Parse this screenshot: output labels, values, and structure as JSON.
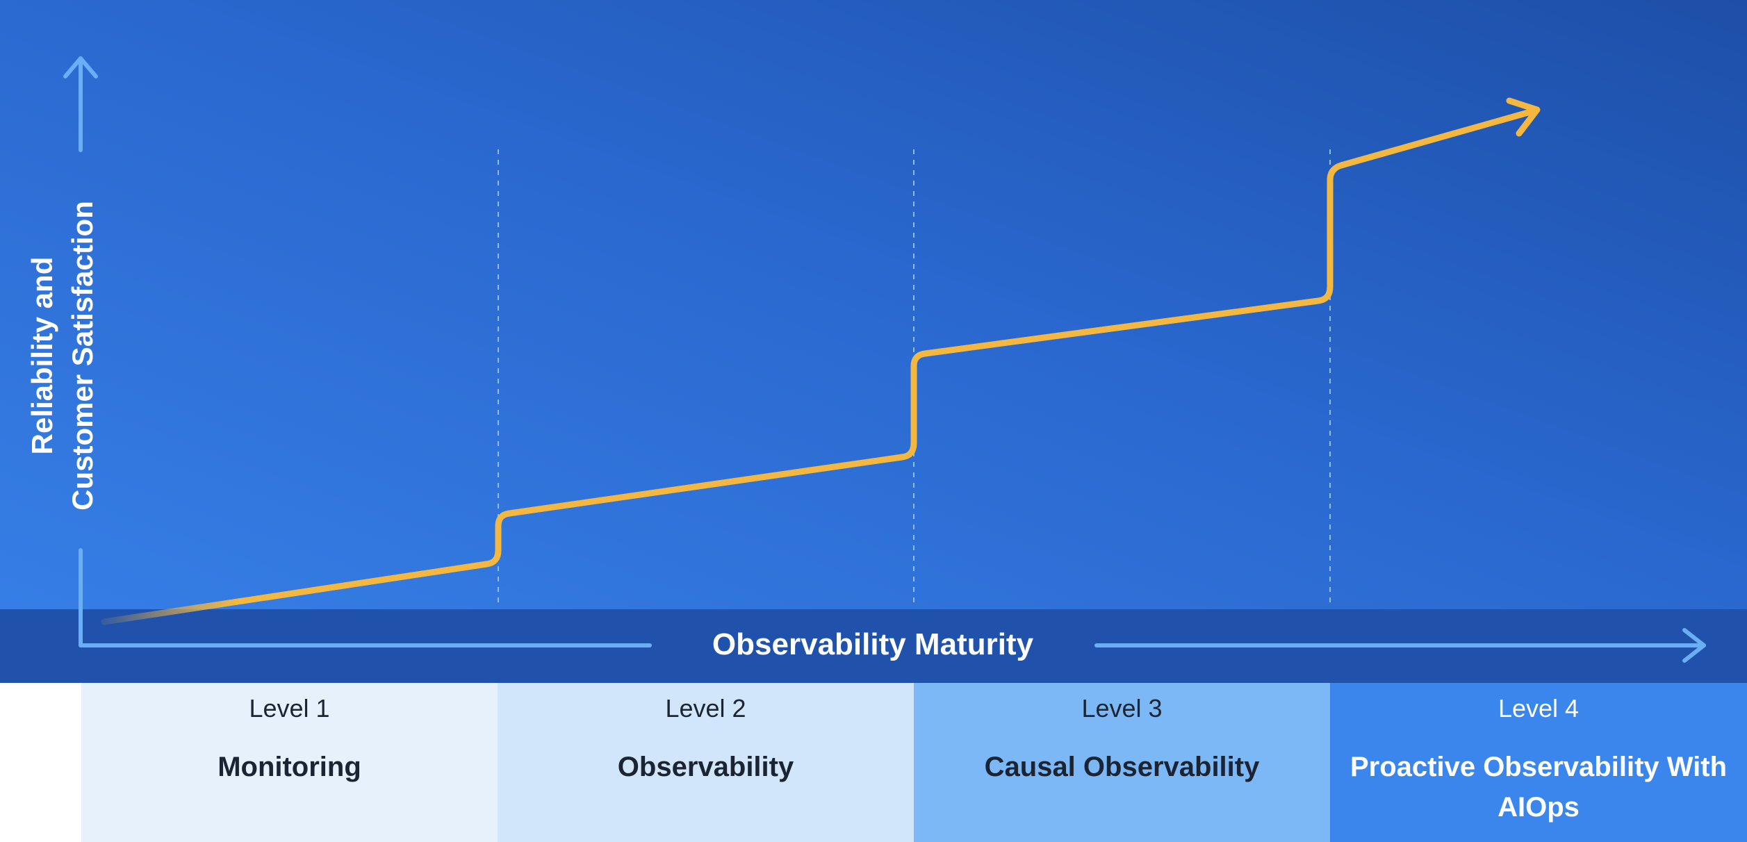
{
  "y_axis": {
    "label_line1": "Reliability and",
    "label_line2": "Customer Satisfaction"
  },
  "x_axis": {
    "label": "Observability Maturity"
  },
  "levels": [
    {
      "number": "Level 1",
      "name": "Monitoring",
      "bg": "#e7f1fc",
      "text_color": "#1b2433"
    },
    {
      "number": "Level 2",
      "name": "Observability",
      "bg": "#d2e6fb",
      "text_color": "#1b2433"
    },
    {
      "number": "Level 3",
      "name": "Causal Observability",
      "bg": "#7db8f6",
      "text_color": "#1b2433"
    },
    {
      "number": "Level 4",
      "name": "Proactive Observability With AIOps",
      "bg": "#3a86ec",
      "text_color": "#ffffff"
    }
  ],
  "colors": {
    "growth_line": "#f4b73f",
    "axis_arrow": "#6aaef5",
    "level_divider": "#8cbef2"
  }
}
